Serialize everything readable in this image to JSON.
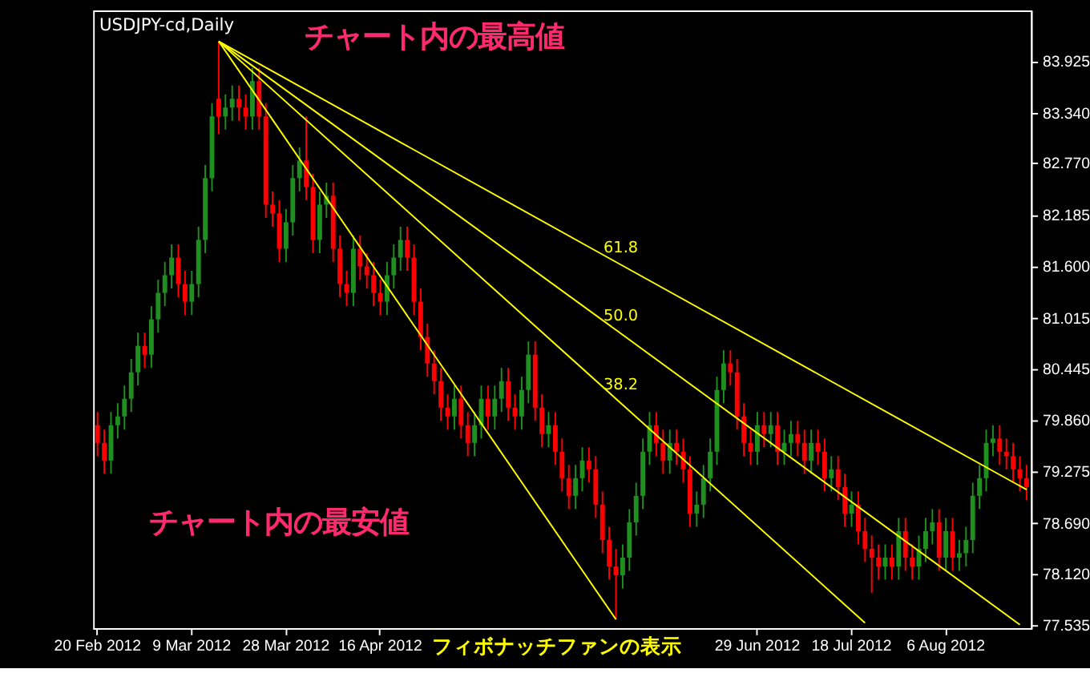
{
  "chart_data": {
    "type": "candlestick",
    "title": "USDJPY-cd,Daily",
    "categories": [
      "20 Feb 2012",
      null,
      null,
      null,
      null,
      null,
      null,
      null,
      null,
      null,
      null,
      null,
      null,
      null,
      "9 Mar 2012",
      null,
      null,
      null,
      null,
      null,
      null,
      null,
      null,
      null,
      null,
      null,
      null,
      null,
      "28 Mar 2012",
      null,
      null,
      null,
      null,
      null,
      null,
      null,
      null,
      null,
      null,
      null,
      null,
      null,
      "16 Apr 2012",
      null,
      null,
      null,
      null,
      null,
      null,
      null,
      null,
      null,
      null,
      null,
      null,
      null,
      null,
      null,
      null,
      null,
      null,
      null,
      null,
      null,
      null,
      null,
      null,
      null,
      null,
      null,
      null,
      null,
      null,
      null,
      null,
      null,
      null,
      null,
      null,
      null,
      null,
      null,
      null,
      null,
      null,
      null,
      null,
      null,
      null,
      null,
      null,
      null,
      null,
      null,
      null,
      null,
      null,
      null,
      "29 Jun 2012",
      null,
      null,
      null,
      null,
      null,
      null,
      null,
      null,
      null,
      null,
      null,
      null,
      null,
      "18 Jul 2012",
      null,
      null,
      null,
      null,
      null,
      null,
      null,
      null,
      null,
      null,
      null,
      null,
      null,
      "6 Aug 2012",
      null,
      null,
      null,
      null,
      null,
      null,
      null,
      null,
      null,
      null,
      null,
      null
    ],
    "ohlc": [
      [
        79.8,
        79.95,
        79.45,
        79.6
      ],
      [
        79.6,
        79.75,
        79.25,
        79.4
      ],
      [
        79.4,
        79.95,
        79.25,
        79.8
      ],
      [
        79.8,
        80.05,
        79.65,
        79.9
      ],
      [
        79.9,
        80.25,
        79.75,
        80.1
      ],
      [
        80.1,
        80.55,
        79.95,
        80.4
      ],
      [
        80.4,
        80.85,
        80.25,
        80.7
      ],
      [
        80.7,
        80.85,
        80.45,
        80.6
      ],
      [
        80.6,
        81.15,
        80.45,
        81.0
      ],
      [
        81.0,
        81.45,
        80.85,
        81.3
      ],
      [
        81.3,
        81.65,
        81.15,
        81.5
      ],
      [
        81.5,
        81.85,
        81.35,
        81.7
      ],
      [
        81.7,
        81.85,
        81.25,
        81.4
      ],
      [
        81.4,
        81.55,
        81.05,
        81.2
      ],
      [
        81.2,
        81.55,
        81.05,
        81.4
      ],
      [
        81.4,
        82.05,
        81.25,
        81.9
      ],
      [
        81.9,
        82.75,
        81.75,
        82.6
      ],
      [
        82.6,
        83.45,
        82.45,
        83.3
      ],
      [
        83.5,
        84.15,
        83.1,
        83.3
      ],
      [
        83.3,
        83.55,
        83.15,
        83.4
      ],
      [
        83.4,
        83.65,
        83.25,
        83.5
      ],
      [
        83.5,
        83.65,
        83.25,
        83.4
      ],
      [
        83.4,
        83.55,
        83.15,
        83.3
      ],
      [
        83.3,
        83.85,
        83.15,
        83.7
      ],
      [
        83.7,
        83.85,
        83.15,
        83.3
      ],
      [
        83.3,
        83.45,
        82.15,
        82.3
      ],
      [
        82.3,
        82.45,
        82.05,
        82.2
      ],
      [
        82.2,
        82.35,
        81.65,
        81.8
      ],
      [
        81.8,
        82.25,
        81.65,
        82.1
      ],
      [
        82.1,
        82.75,
        81.95,
        82.6
      ],
      [
        82.6,
        82.95,
        82.45,
        82.8
      ],
      [
        82.8,
        83.3,
        82.35,
        82.5
      ],
      [
        82.5,
        82.65,
        81.75,
        81.9
      ],
      [
        81.9,
        82.45,
        81.75,
        82.3
      ],
      [
        82.3,
        82.55,
        82.15,
        82.4
      ],
      [
        82.4,
        82.55,
        81.65,
        81.8
      ],
      [
        81.8,
        81.95,
        81.25,
        81.4
      ],
      [
        81.4,
        81.55,
        81.15,
        81.3
      ],
      [
        81.3,
        81.95,
        81.15,
        81.8
      ],
      [
        81.8,
        81.95,
        81.45,
        81.6
      ],
      [
        81.6,
        81.75,
        81.35,
        81.5
      ],
      [
        81.5,
        81.65,
        81.15,
        81.3
      ],
      [
        81.3,
        81.45,
        81.05,
        81.2
      ],
      [
        81.2,
        81.65,
        81.05,
        81.5
      ],
      [
        81.5,
        81.85,
        81.35,
        81.7
      ],
      [
        81.7,
        82.05,
        81.55,
        81.9
      ],
      [
        81.9,
        82.05,
        81.55,
        81.7
      ],
      [
        81.7,
        81.85,
        81.05,
        81.2
      ],
      [
        81.2,
        81.35,
        80.65,
        80.8
      ],
      [
        80.8,
        80.95,
        80.35,
        80.5
      ],
      [
        80.5,
        80.65,
        80.15,
        80.3
      ],
      [
        80.3,
        80.45,
        79.85,
        80.0
      ],
      [
        80.0,
        80.15,
        79.75,
        79.9
      ],
      [
        79.9,
        80.25,
        79.75,
        80.1
      ],
      [
        80.1,
        80.25,
        79.65,
        79.8
      ],
      [
        79.8,
        79.95,
        79.45,
        79.6
      ],
      [
        79.6,
        79.95,
        79.45,
        79.8
      ],
      [
        79.8,
        80.25,
        79.65,
        80.1
      ],
      [
        80.1,
        80.25,
        79.75,
        79.9
      ],
      [
        79.9,
        80.25,
        79.75,
        80.1
      ],
      [
        80.1,
        80.45,
        79.95,
        80.3
      ],
      [
        80.3,
        80.45,
        79.85,
        80.0
      ],
      [
        80.0,
        80.15,
        79.75,
        79.9
      ],
      [
        79.9,
        80.35,
        79.75,
        80.2
      ],
      [
        80.2,
        80.75,
        80.05,
        80.6
      ],
      [
        80.6,
        80.75,
        79.85,
        80.0
      ],
      [
        80.0,
        80.15,
        79.55,
        79.7
      ],
      [
        79.7,
        79.95,
        79.55,
        79.8
      ],
      [
        79.8,
        79.95,
        79.35,
        79.5
      ],
      [
        79.5,
        79.65,
        79.05,
        79.2
      ],
      [
        79.2,
        79.35,
        78.85,
        79.0
      ],
      [
        79.0,
        79.35,
        78.85,
        79.2
      ],
      [
        79.2,
        79.55,
        79.05,
        79.4
      ],
      [
        79.4,
        79.55,
        79.15,
        79.3
      ],
      [
        79.3,
        79.45,
        78.75,
        78.9
      ],
      [
        78.9,
        79.05,
        78.35,
        78.5
      ],
      [
        78.5,
        78.65,
        78.05,
        78.2
      ],
      [
        78.2,
        78.4,
        77.6,
        78.1
      ],
      [
        78.1,
        78.45,
        77.95,
        78.3
      ],
      [
        78.3,
        78.85,
        78.15,
        78.7
      ],
      [
        78.7,
        79.15,
        78.55,
        79.0
      ],
      [
        79.0,
        79.65,
        78.85,
        79.5
      ],
      [
        79.5,
        79.95,
        79.35,
        79.8
      ],
      [
        79.8,
        79.95,
        79.45,
        79.6
      ],
      [
        79.6,
        79.75,
        79.25,
        79.4
      ],
      [
        79.4,
        79.75,
        79.25,
        79.6
      ],
      [
        79.6,
        79.75,
        79.35,
        79.5
      ],
      [
        79.5,
        79.65,
        79.15,
        79.3
      ],
      [
        79.3,
        79.45,
        78.65,
        78.8
      ],
      [
        78.8,
        79.05,
        78.65,
        78.9
      ],
      [
        78.9,
        79.35,
        78.75,
        79.2
      ],
      [
        79.2,
        79.65,
        79.05,
        79.5
      ],
      [
        79.5,
        80.35,
        79.35,
        80.2
      ],
      [
        80.2,
        80.65,
        80.05,
        80.5
      ],
      [
        80.5,
        80.65,
        80.25,
        80.4
      ],
      [
        80.4,
        80.55,
        79.75,
        79.9
      ],
      [
        79.9,
        80.05,
        79.45,
        79.6
      ],
      [
        79.6,
        79.75,
        79.35,
        79.5
      ],
      [
        79.5,
        79.95,
        79.35,
        79.8
      ],
      [
        79.8,
        79.95,
        79.55,
        79.7
      ],
      [
        79.7,
        79.95,
        79.55,
        79.8
      ],
      [
        79.8,
        79.95,
        79.35,
        79.5
      ],
      [
        79.5,
        79.75,
        79.35,
        79.6
      ],
      [
        79.6,
        79.85,
        79.45,
        79.7
      ],
      [
        79.7,
        79.85,
        79.45,
        79.6
      ],
      [
        79.6,
        79.75,
        79.25,
        79.4
      ],
      [
        79.4,
        79.75,
        79.25,
        79.6
      ],
      [
        79.6,
        79.75,
        79.35,
        79.5
      ],
      [
        79.5,
        79.65,
        79.05,
        79.2
      ],
      [
        79.2,
        79.45,
        79.05,
        79.3
      ],
      [
        79.3,
        79.45,
        78.95,
        79.1
      ],
      [
        79.1,
        79.25,
        78.65,
        78.8
      ],
      [
        78.8,
        79.05,
        78.65,
        78.9
      ],
      [
        78.9,
        79.05,
        78.45,
        78.6
      ],
      [
        78.6,
        78.75,
        78.25,
        78.4
      ],
      [
        78.4,
        78.55,
        77.9,
        78.3
      ],
      [
        78.3,
        78.45,
        78.05,
        78.2
      ],
      [
        78.2,
        78.45,
        78.05,
        78.3
      ],
      [
        78.3,
        78.45,
        78.05,
        78.2
      ],
      [
        78.2,
        78.75,
        78.05,
        78.6
      ],
      [
        78.6,
        78.75,
        78.15,
        78.3
      ],
      [
        78.3,
        78.45,
        78.05,
        78.2
      ],
      [
        78.2,
        78.55,
        78.05,
        78.4
      ],
      [
        78.4,
        78.75,
        78.25,
        78.6
      ],
      [
        78.6,
        78.85,
        78.45,
        78.7
      ],
      [
        78.7,
        78.85,
        78.15,
        78.3
      ],
      [
        78.3,
        78.75,
        78.15,
        78.6
      ],
      [
        78.6,
        78.75,
        78.15,
        78.3
      ],
      [
        78.3,
        78.5,
        78.15,
        78.35
      ],
      [
        78.35,
        78.65,
        78.2,
        78.5
      ],
      [
        78.5,
        79.15,
        78.35,
        79.0
      ],
      [
        79.0,
        79.35,
        78.85,
        79.2
      ],
      [
        79.2,
        79.75,
        79.05,
        79.6
      ],
      [
        79.6,
        79.8,
        79.45,
        79.65
      ],
      [
        79.65,
        79.8,
        79.35,
        79.5
      ],
      [
        79.5,
        79.65,
        79.3,
        79.45
      ],
      [
        79.45,
        79.6,
        79.15,
        79.3
      ],
      [
        79.3,
        79.45,
        79.05,
        79.2
      ],
      [
        79.2,
        79.35,
        78.95,
        79.1
      ]
    ],
    "colors": [
      "#ff0000",
      "#ff0000",
      "#1f8f1f",
      "#1f8f1f",
      "#1f8f1f",
      "#1f8f1f",
      "#1f8f1f",
      "#ff0000",
      "#1f8f1f",
      "#1f8f1f",
      "#1f8f1f",
      "#1f8f1f",
      "#ff0000",
      "#ff0000",
      "#1f8f1f",
      "#1f8f1f",
      "#1f8f1f",
      "#1f8f1f",
      "#ff0000",
      "#1f8f1f",
      "#1f8f1f",
      "#ff0000",
      "#ff0000",
      "#1f8f1f",
      "#ff0000",
      "#ff0000",
      "#ff0000",
      "#ff0000",
      "#1f8f1f",
      "#1f8f1f",
      "#1f8f1f",
      "#ff0000",
      "#ff0000",
      "#1f8f1f",
      "#1f8f1f",
      "#ff0000",
      "#ff0000",
      "#ff0000",
      "#1f8f1f",
      "#ff0000",
      "#ff0000",
      "#ff0000",
      "#ff0000",
      "#1f8f1f",
      "#1f8f1f",
      "#1f8f1f",
      "#ff0000",
      "#ff0000",
      "#ff0000",
      "#ff0000",
      "#ff0000",
      "#ff0000",
      "#ff0000",
      "#1f8f1f",
      "#ff0000",
      "#ff0000",
      "#1f8f1f",
      "#1f8f1f",
      "#ff0000",
      "#1f8f1f",
      "#1f8f1f",
      "#ff0000",
      "#ff0000",
      "#1f8f1f",
      "#1f8f1f",
      "#ff0000",
      "#ff0000",
      "#1f8f1f",
      "#ff0000",
      "#ff0000",
      "#ff0000",
      "#1f8f1f",
      "#1f8f1f",
      "#ff0000",
      "#ff0000",
      "#ff0000",
      "#ff0000",
      "#ff0000",
      "#1f8f1f",
      "#1f8f1f",
      "#1f8f1f",
      "#1f8f1f",
      "#1f8f1f",
      "#ff0000",
      "#ff0000",
      "#1f8f1f",
      "#ff0000",
      "#ff0000",
      "#ff0000",
      "#1f8f1f",
      "#1f8f1f",
      "#1f8f1f",
      "#1f8f1f",
      "#1f8f1f",
      "#ff0000",
      "#ff0000",
      "#ff0000",
      "#ff0000",
      "#1f8f1f",
      "#ff0000",
      "#1f8f1f",
      "#ff0000",
      "#1f8f1f",
      "#1f8f1f",
      "#ff0000",
      "#ff0000",
      "#1f8f1f",
      "#ff0000",
      "#ff0000",
      "#1f8f1f",
      "#ff0000",
      "#ff0000",
      "#1f8f1f",
      "#ff0000",
      "#ff0000",
      "#ff0000",
      "#ff0000",
      "#1f8f1f",
      "#ff0000",
      "#1f8f1f",
      "#ff0000",
      "#ff0000",
      "#1f8f1f",
      "#1f8f1f",
      "#1f8f1f",
      "#ff0000",
      "#1f8f1f",
      "#ff0000",
      "#1f8f1f",
      "#1f8f1f",
      "#1f8f1f",
      "#1f8f1f",
      "#1f8f1f",
      "#1f8f1f",
      "#ff0000",
      "#ff0000",
      "#ff0000",
      "#ff0000",
      "#ff0000"
    ],
    "series": [
      {
        "type": "line",
        "color": "#ffff00",
        "values": [
          null,
          null,
          null,
          null,
          null,
          null,
          null,
          null,
          null,
          null,
          null,
          null,
          null,
          null,
          null,
          null,
          null,
          null,
          84.15,
          null,
          null,
          null,
          null,
          null,
          null,
          null,
          null,
          null,
          null,
          null,
          null,
          null,
          null,
          null,
          null,
          null,
          null,
          null,
          null,
          null,
          null,
          null,
          null,
          null,
          null,
          null,
          null,
          null,
          null,
          null,
          null,
          null,
          null,
          null,
          null,
          null,
          null,
          null,
          null,
          null,
          null,
          null,
          null,
          null,
          null,
          null,
          null,
          null,
          null,
          null,
          null,
          null,
          null,
          null,
          null,
          null,
          null,
          77.6,
          null,
          null,
          null,
          null,
          null,
          null,
          null,
          null,
          null,
          null,
          null,
          null,
          null,
          null,
          null,
          null,
          null,
          null,
          null,
          null,
          null,
          null,
          null,
          null,
          null,
          null,
          null,
          null,
          null,
          null,
          null,
          null,
          null,
          null,
          null,
          null,
          null,
          null,
          null,
          null,
          null,
          null,
          null,
          null,
          null,
          null,
          null,
          null,
          null,
          null,
          null,
          null,
          null,
          null,
          null,
          null,
          null,
          null,
          null,
          null,
          null
        ]
      },
      {
        "type": "line",
        "name": "38.2",
        "color": "#ffff00",
        "values": [
          null,
          null,
          null,
          null,
          null,
          null,
          null,
          null,
          null,
          null,
          null,
          null,
          null,
          null,
          null,
          null,
          null,
          null,
          84.15,
          null,
          null,
          null,
          null,
          null,
          null,
          null,
          null,
          null,
          null,
          null,
          null,
          null,
          null,
          null,
          null,
          null,
          null,
          null,
          null,
          null,
          null,
          null,
          null,
          null,
          null,
          null,
          null,
          null,
          null,
          null,
          null,
          null,
          null,
          null,
          null,
          null,
          null,
          null,
          null,
          null,
          null,
          null,
          null,
          null,
          null,
          null,
          null,
          null,
          null,
          null,
          null,
          null,
          null,
          null,
          null,
          null,
          null,
          80.1,
          null,
          null,
          null,
          null,
          null,
          null,
          null,
          null,
          null,
          null,
          null,
          null,
          null,
          null,
          null,
          null,
          null,
          null,
          null,
          null,
          null,
          null,
          null,
          null,
          null,
          null,
          null,
          null,
          null,
          null,
          null,
          null,
          null,
          null,
          null,
          null,
          77.56,
          null,
          null,
          null,
          null,
          null,
          null,
          null,
          null,
          null,
          null,
          null,
          null,
          null,
          null,
          null,
          null,
          null,
          null,
          null,
          null,
          null,
          null,
          null,
          null
        ]
      },
      {
        "type": "line",
        "name": "50.0",
        "color": "#ffff00",
        "values": [
          null,
          null,
          null,
          null,
          null,
          null,
          null,
          null,
          null,
          null,
          null,
          null,
          null,
          null,
          null,
          null,
          null,
          null,
          84.15,
          null,
          null,
          null,
          null,
          null,
          null,
          null,
          null,
          null,
          null,
          null,
          null,
          null,
          null,
          null,
          null,
          null,
          null,
          null,
          null,
          null,
          null,
          null,
          null,
          null,
          null,
          null,
          null,
          null,
          null,
          null,
          null,
          null,
          null,
          null,
          null,
          null,
          null,
          null,
          null,
          null,
          null,
          null,
          null,
          null,
          null,
          null,
          null,
          null,
          null,
          null,
          null,
          null,
          null,
          null,
          null,
          null,
          null,
          80.88,
          null,
          null,
          null,
          null,
          null,
          null,
          null,
          null,
          null,
          null,
          null,
          null,
          null,
          null,
          null,
          null,
          null,
          null,
          null,
          null,
          null,
          null,
          null,
          null,
          null,
          null,
          null,
          null,
          null,
          null,
          null,
          null,
          null,
          null,
          null,
          null,
          null,
          null,
          null,
          null,
          null,
          null,
          null,
          null,
          null,
          null,
          null,
          null,
          null,
          null,
          null,
          null,
          null,
          null,
          null,
          null,
          null,
          null,
          null,
          77.54,
          null
        ]
      },
      {
        "type": "line",
        "name": "61.8",
        "color": "#ffff00",
        "values": [
          null,
          null,
          null,
          null,
          null,
          null,
          null,
          null,
          null,
          null,
          null,
          null,
          null,
          null,
          null,
          null,
          null,
          null,
          84.15,
          null,
          null,
          null,
          null,
          null,
          null,
          null,
          null,
          null,
          null,
          null,
          null,
          null,
          null,
          null,
          null,
          null,
          null,
          null,
          null,
          null,
          null,
          null,
          null,
          null,
          null,
          null,
          null,
          null,
          null,
          null,
          null,
          null,
          null,
          null,
          null,
          null,
          null,
          null,
          null,
          null,
          null,
          null,
          null,
          null,
          null,
          null,
          null,
          null,
          null,
          null,
          null,
          null,
          null,
          null,
          null,
          null,
          null,
          81.65,
          null,
          null,
          null,
          null,
          null,
          null,
          null,
          null,
          null,
          null,
          null,
          null,
          null,
          null,
          null,
          null,
          null,
          null,
          null,
          null,
          null,
          null,
          null,
          null,
          null,
          null,
          null,
          null,
          null,
          null,
          null,
          null,
          null,
          null,
          null,
          null,
          null,
          null,
          null,
          null,
          null,
          null,
          null,
          null,
          null,
          null,
          null,
          null,
          null,
          null,
          null,
          null,
          null,
          null,
          null,
          null,
          null,
          null,
          null,
          null,
          79.07
        ]
      }
    ],
    "annotations": [
      "チャート内の最高値",
      "チャート内の最安値",
      "フィボナッチファンの表示"
    ],
    "ylim": [
      77.5,
      84.5
    ],
    "yticks": [
      77.535,
      {
        "value": 78.12,
        "label": "78.120"
      },
      {
        "value": 78.69,
        "label": "78.690"
      },
      79.275,
      {
        "value": 79.86,
        "label": "79.860"
      },
      80.445,
      81.015,
      {
        "value": 81.6,
        "label": "81.600"
      },
      82.185,
      {
        "value": 82.77,
        "label": "82.770"
      },
      {
        "value": 83.34,
        "label": "83.340"
      },
      83.925
    ],
    "grid": false
  }
}
